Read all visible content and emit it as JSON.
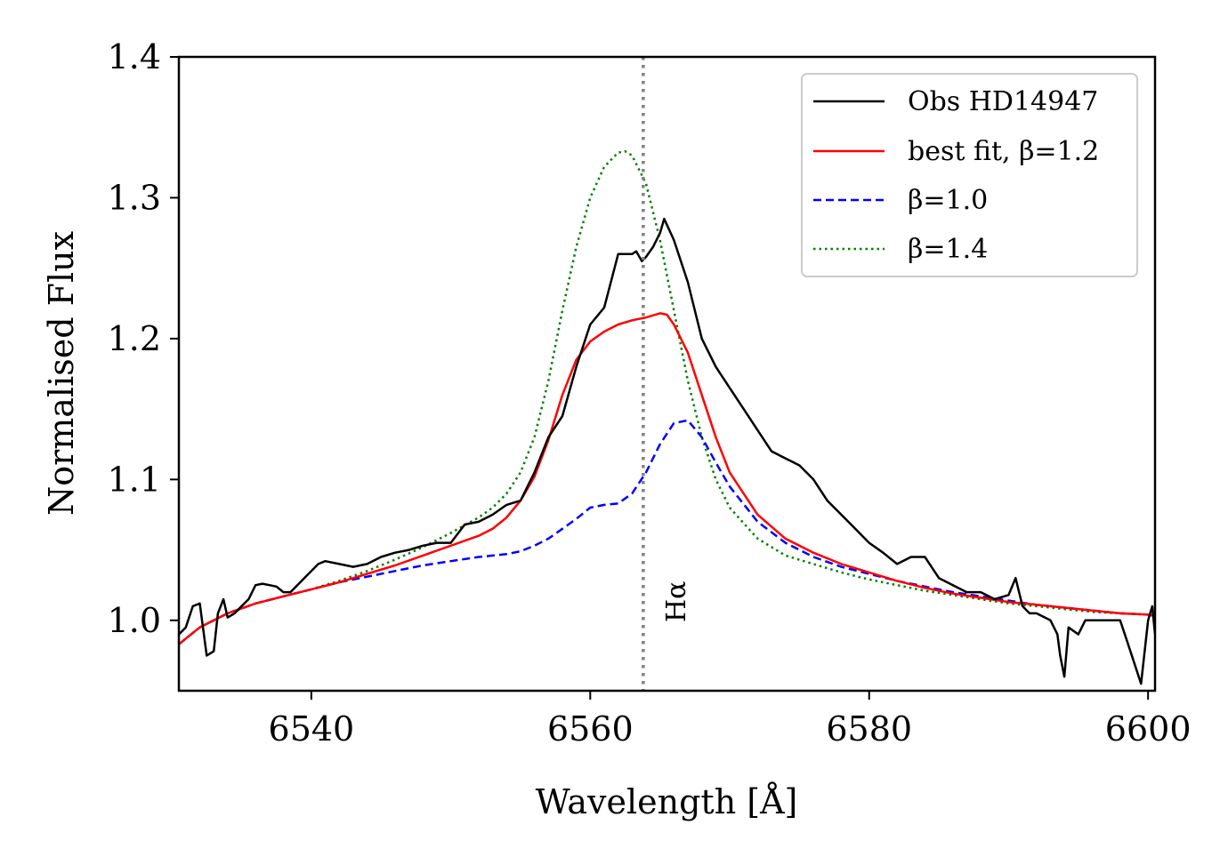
{
  "chart_data": {
    "type": "line",
    "title": "",
    "xlabel": "Wavelength [Å]",
    "ylabel": "Normalised Flux",
    "xlim": [
      6530.5,
      6600.5
    ],
    "ylim": [
      0.95,
      1.4
    ],
    "xticks": [
      6540,
      6560,
      6580,
      6600
    ],
    "yticks": [
      1.0,
      1.1,
      1.2,
      1.3,
      1.4
    ],
    "xtick_labels": [
      "6540",
      "6560",
      "6580",
      "6600"
    ],
    "ytick_labels": [
      "1.0",
      "1.1",
      "1.2",
      "1.3",
      "1.4"
    ],
    "legend_position": "top-right",
    "reference_line": {
      "x": 6563.8,
      "label": "Hα",
      "color": "#808080",
      "style": "dotted"
    },
    "series": [
      {
        "name": "Obs HD14947",
        "color": "#000000",
        "style": "solid",
        "x": [
          6530.5,
          6531,
          6531.5,
          6532,
          6532.5,
          6533,
          6533.3,
          6533.7,
          6534,
          6534.5,
          6535,
          6535.5,
          6536,
          6536.5,
          6537,
          6537.5,
          6538,
          6538.5,
          6539,
          6539.5,
          6540,
          6540.5,
          6541,
          6542,
          6543,
          6544,
          6545,
          6546,
          6547,
          6548,
          6549,
          6550,
          6551,
          6552,
          6553,
          6554,
          6555,
          6556,
          6557,
          6558,
          6559,
          6560,
          6561,
          6562,
          6563,
          6563.3,
          6563.7,
          6564,
          6564.5,
          6565,
          6565.3,
          6566,
          6567,
          6568,
          6569,
          6570,
          6571,
          6572,
          6573,
          6574,
          6575,
          6576,
          6577,
          6578,
          6579,
          6580,
          6581,
          6582,
          6583,
          6584,
          6585,
          6586,
          6587,
          6588,
          6589,
          6590,
          6590.5,
          6591,
          6591.5,
          6592,
          6593,
          6593.5,
          6593.7,
          6594,
          6594.3,
          6595,
          6595.5,
          6596,
          6597,
          6598,
          6598.5,
          6599,
          6599.5,
          6600,
          6600.3,
          6600.5
        ],
        "y": [
          0.99,
          0.995,
          1.01,
          1.012,
          0.975,
          0.978,
          1.005,
          1.015,
          1.002,
          1.005,
          1.01,
          1.015,
          1.025,
          1.026,
          1.025,
          1.024,
          1.02,
          1.02,
          1.025,
          1.03,
          1.035,
          1.04,
          1.042,
          1.04,
          1.038,
          1.04,
          1.045,
          1.048,
          1.05,
          1.053,
          1.055,
          1.055,
          1.068,
          1.07,
          1.075,
          1.082,
          1.085,
          1.105,
          1.13,
          1.145,
          1.18,
          1.21,
          1.222,
          1.26,
          1.26,
          1.262,
          1.255,
          1.258,
          1.265,
          1.275,
          1.285,
          1.27,
          1.24,
          1.2,
          1.18,
          1.165,
          1.15,
          1.135,
          1.12,
          1.115,
          1.11,
          1.1,
          1.085,
          1.075,
          1.065,
          1.055,
          1.048,
          1.04,
          1.045,
          1.045,
          1.03,
          1.025,
          1.02,
          1.02,
          1.015,
          1.018,
          1.03,
          1.01,
          1.005,
          1.005,
          1.0,
          0.99,
          0.975,
          0.96,
          0.995,
          0.99,
          1.0,
          1.0,
          1.0,
          1.0,
          0.985,
          0.97,
          0.955,
          1.0,
          1.01,
          0.99
        ]
      },
      {
        "name": "best fit, β=1.2",
        "color": "#ff0000",
        "style": "solid",
        "x": [
          6530.5,
          6532,
          6534,
          6536,
          6538,
          6540,
          6542,
          6544,
          6546,
          6548,
          6550,
          6552,
          6553,
          6554,
          6555,
          6556,
          6557,
          6558,
          6559,
          6560,
          6561,
          6562,
          6563,
          6564,
          6565,
          6565.5,
          6566,
          6567,
          6568,
          6569,
          6570,
          6572,
          6574,
          6576,
          6578,
          6580,
          6582,
          6584,
          6586,
          6588,
          6590,
          6592,
          6594,
          6596,
          6598,
          6600,
          6600.5
        ],
        "y": [
          0.983,
          0.995,
          1.005,
          1.012,
          1.017,
          1.022,
          1.027,
          1.033,
          1.039,
          1.046,
          1.053,
          1.06,
          1.065,
          1.073,
          1.085,
          1.102,
          1.128,
          1.16,
          1.185,
          1.198,
          1.205,
          1.21,
          1.213,
          1.215,
          1.218,
          1.217,
          1.21,
          1.19,
          1.16,
          1.13,
          1.105,
          1.075,
          1.058,
          1.048,
          1.04,
          1.034,
          1.028,
          1.023,
          1.019,
          1.016,
          1.013,
          1.011,
          1.009,
          1.007,
          1.005,
          1.004,
          1.003
        ]
      },
      {
        "name": "β=1.0",
        "color": "#0000ff",
        "style": "dashed",
        "x": [
          6530.5,
          6532,
          6534,
          6536,
          6538,
          6540,
          6542,
          6544,
          6546,
          6548,
          6550,
          6552,
          6554,
          6555,
          6556,
          6557,
          6558,
          6559,
          6560,
          6561,
          6562,
          6563,
          6564,
          6565,
          6566,
          6567,
          6568,
          6569,
          6570,
          6572,
          6574,
          6576,
          6578,
          6580,
          6582,
          6584,
          6586,
          6588,
          6590,
          6592,
          6594,
          6596,
          6598,
          6600,
          6600.5
        ],
        "y": [
          0.983,
          0.995,
          1.005,
          1.012,
          1.017,
          1.022,
          1.027,
          1.031,
          1.035,
          1.039,
          1.042,
          1.045,
          1.047,
          1.049,
          1.053,
          1.058,
          1.065,
          1.072,
          1.08,
          1.082,
          1.083,
          1.09,
          1.105,
          1.125,
          1.14,
          1.142,
          1.13,
          1.112,
          1.095,
          1.07,
          1.055,
          1.045,
          1.038,
          1.033,
          1.028,
          1.024,
          1.02,
          1.017,
          1.014,
          1.011,
          1.009,
          1.007,
          1.005,
          1.004,
          1.003
        ]
      },
      {
        "name": "β=1.4",
        "color": "#008000",
        "style": "dotted",
        "x": [
          6530.5,
          6532,
          6534,
          6536,
          6538,
          6540,
          6542,
          6544,
          6546,
          6548,
          6550,
          6552,
          6553,
          6554,
          6555,
          6556,
          6557,
          6558,
          6559,
          6560,
          6561,
          6562,
          6562.5,
          6563,
          6564,
          6565,
          6566,
          6567,
          6568,
          6569,
          6570,
          6572,
          6574,
          6576,
          6578,
          6580,
          6582,
          6584,
          6586,
          6588,
          6590,
          6592,
          6594,
          6596,
          6598,
          6600,
          6600.5
        ],
        "y": [
          0.983,
          0.995,
          1.005,
          1.012,
          1.017,
          1.022,
          1.028,
          1.035,
          1.043,
          1.052,
          1.062,
          1.073,
          1.08,
          1.09,
          1.105,
          1.13,
          1.17,
          1.22,
          1.265,
          1.3,
          1.322,
          1.332,
          1.333,
          1.33,
          1.31,
          1.27,
          1.22,
          1.17,
          1.13,
          1.1,
          1.08,
          1.058,
          1.046,
          1.04,
          1.034,
          1.029,
          1.025,
          1.021,
          1.018,
          1.015,
          1.012,
          1.01,
          1.008,
          1.006,
          1.005,
          1.004,
          1.003
        ]
      }
    ]
  }
}
